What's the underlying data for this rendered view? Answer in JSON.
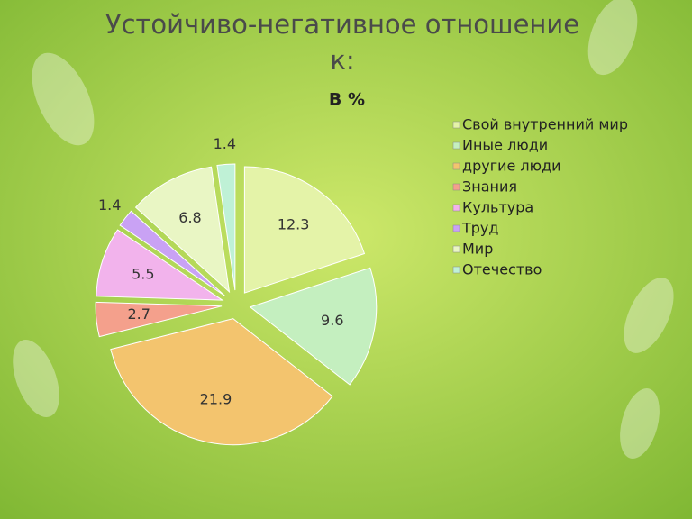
{
  "chart_data": {
    "type": "pie",
    "title": "Устойчиво-негативное отношение к:",
    "subtitle": "В %",
    "categories": [
      "Свой внутренний мир",
      "Иные люди",
      "другие люди",
      "Знания",
      "Культура",
      "Труд",
      "Мир",
      "Отечество"
    ],
    "values": [
      12.3,
      9.6,
      21.9,
      2.7,
      5.5,
      1.4,
      6.8,
      1.4
    ],
    "colors": [
      "#e4f3a8",
      "#c4efbf",
      "#f3c46e",
      "#f4a08c",
      "#f2b3ec",
      "#c9a2f4",
      "#e9f6c4",
      "#bff1d6"
    ]
  }
}
